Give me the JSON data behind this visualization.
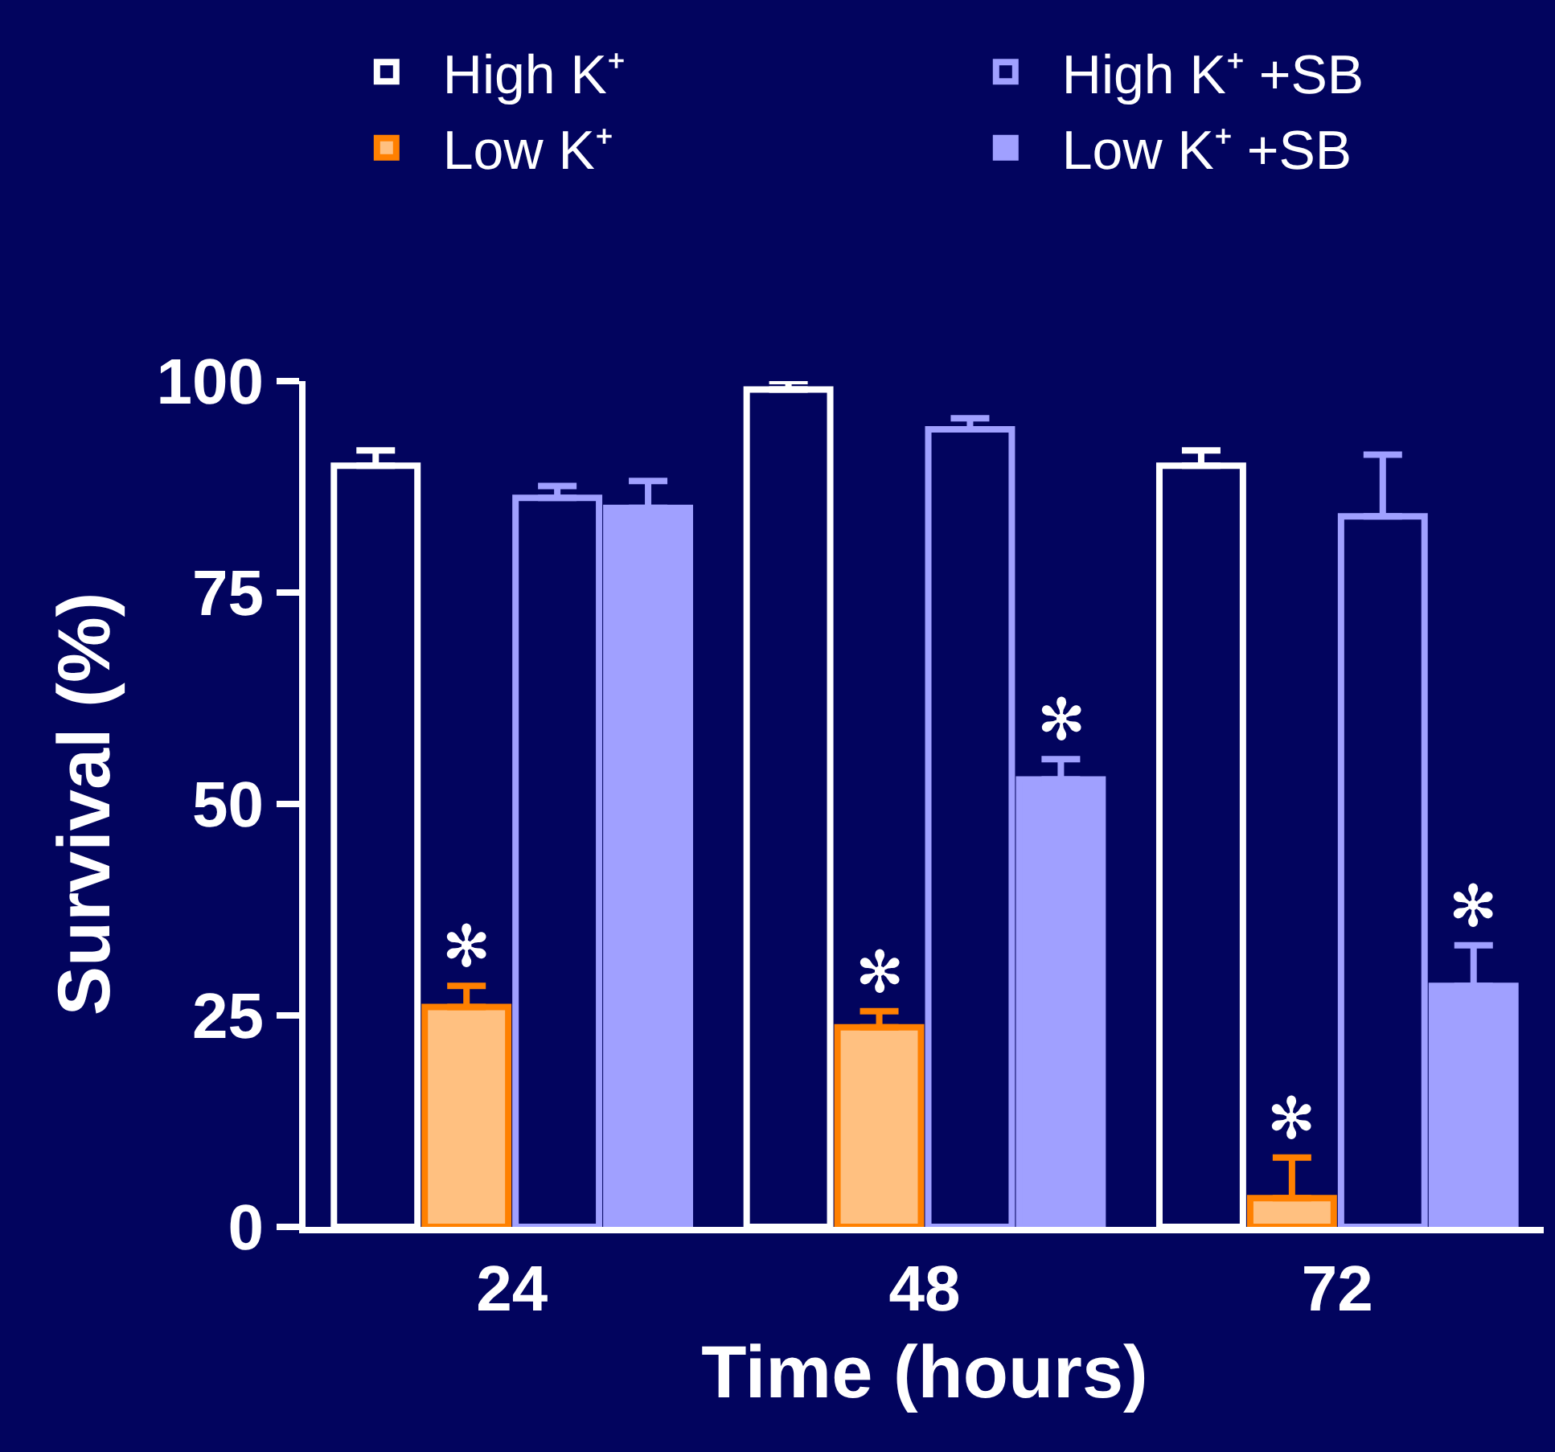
{
  "chart_data": {
    "type": "bar",
    "xlabel": "Time (hours)",
    "ylabel": "Survival (%)",
    "categories": [
      "24",
      "48",
      "72"
    ],
    "series": [
      {
        "name": "High K⁺",
        "color": "#ffffff",
        "values": [
          90,
          99,
          90
        ],
        "errors": [
          [
            90,
            91.8
          ],
          [
            99,
            100
          ],
          [
            90,
            91.8
          ]
        ]
      },
      {
        "name": "Low K⁺",
        "color": "#ff8000",
        "values": [
          26,
          23.6,
          3.4
        ],
        "errors": [
          [
            26,
            28.5
          ],
          [
            23.6,
            25.5
          ],
          [
            3.4,
            8.2
          ]
        ]
      },
      {
        "name": "High K⁺ +SB",
        "color": "#a0a0ff",
        "values": [
          86.2,
          94.3,
          84
        ],
        "errors": [
          [
            86.2,
            87.6
          ],
          [
            94.3,
            95.6
          ],
          [
            84,
            91.3
          ]
        ]
      },
      {
        "name": "Low K⁺ +SB",
        "color": "#a0a0ff",
        "values": [
          85,
          52.9,
          28.5
        ],
        "errors": [
          [
            85,
            88.2
          ],
          [
            52.9,
            55.3
          ],
          [
            28.5,
            33.3
          ]
        ]
      }
    ],
    "ylim": [
      0,
      100
    ],
    "yticks": [
      0,
      25,
      50,
      75,
      100
    ],
    "grid": false,
    "legend": "top",
    "annotations": [
      {
        "text": "✻",
        "x": "24",
        "y": 26
      },
      {
        "text": "✻",
        "x": "48",
        "y": 23.6
      },
      {
        "text": "✻",
        "x": "72",
        "y": 3.4
      },
      {
        "text": "✻",
        "x": "48",
        "y": 52.9
      },
      {
        "text": "✻",
        "x": "72",
        "y": 28.5
      }
    ]
  }
}
